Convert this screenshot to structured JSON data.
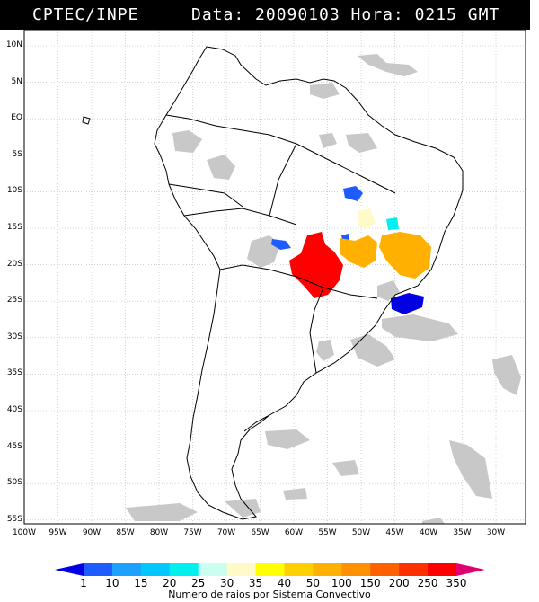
{
  "header": {
    "source": "CPTEC/INPE",
    "datetime": "Data: 20090103 Hora: 0215 GMT"
  },
  "map": {
    "lat_labels": [
      "10N",
      "5N",
      "EQ",
      "5S",
      "10S",
      "15S",
      "20S",
      "25S",
      "30S",
      "35S",
      "40S",
      "45S",
      "50S",
      "55S"
    ],
    "lon_labels": [
      "100W",
      "95W",
      "90W",
      "85W",
      "80W",
      "75W",
      "70W",
      "65W",
      "60W",
      "55W",
      "50W",
      "45W",
      "40W",
      "35W",
      "30W"
    ],
    "grid": true,
    "cloud_color": "#c8c8c8",
    "coast_color": "#000000"
  },
  "legend": {
    "values": [
      "1",
      "10",
      "15",
      "20",
      "25",
      "30",
      "35",
      "40",
      "50",
      "100",
      "150",
      "200",
      "250",
      "350"
    ],
    "colors": [
      "#0000e0",
      "#1e5cff",
      "#1ea0ff",
      "#00c8ff",
      "#00f0f0",
      "#c8fff0",
      "#fffac8",
      "#ffff00",
      "#ffd000",
      "#ffb000",
      "#ff9000",
      "#ff6000",
      "#ff3000",
      "#ff0000",
      "#e00070"
    ],
    "title": "Numero de raios por Sistema Convectivo"
  }
}
